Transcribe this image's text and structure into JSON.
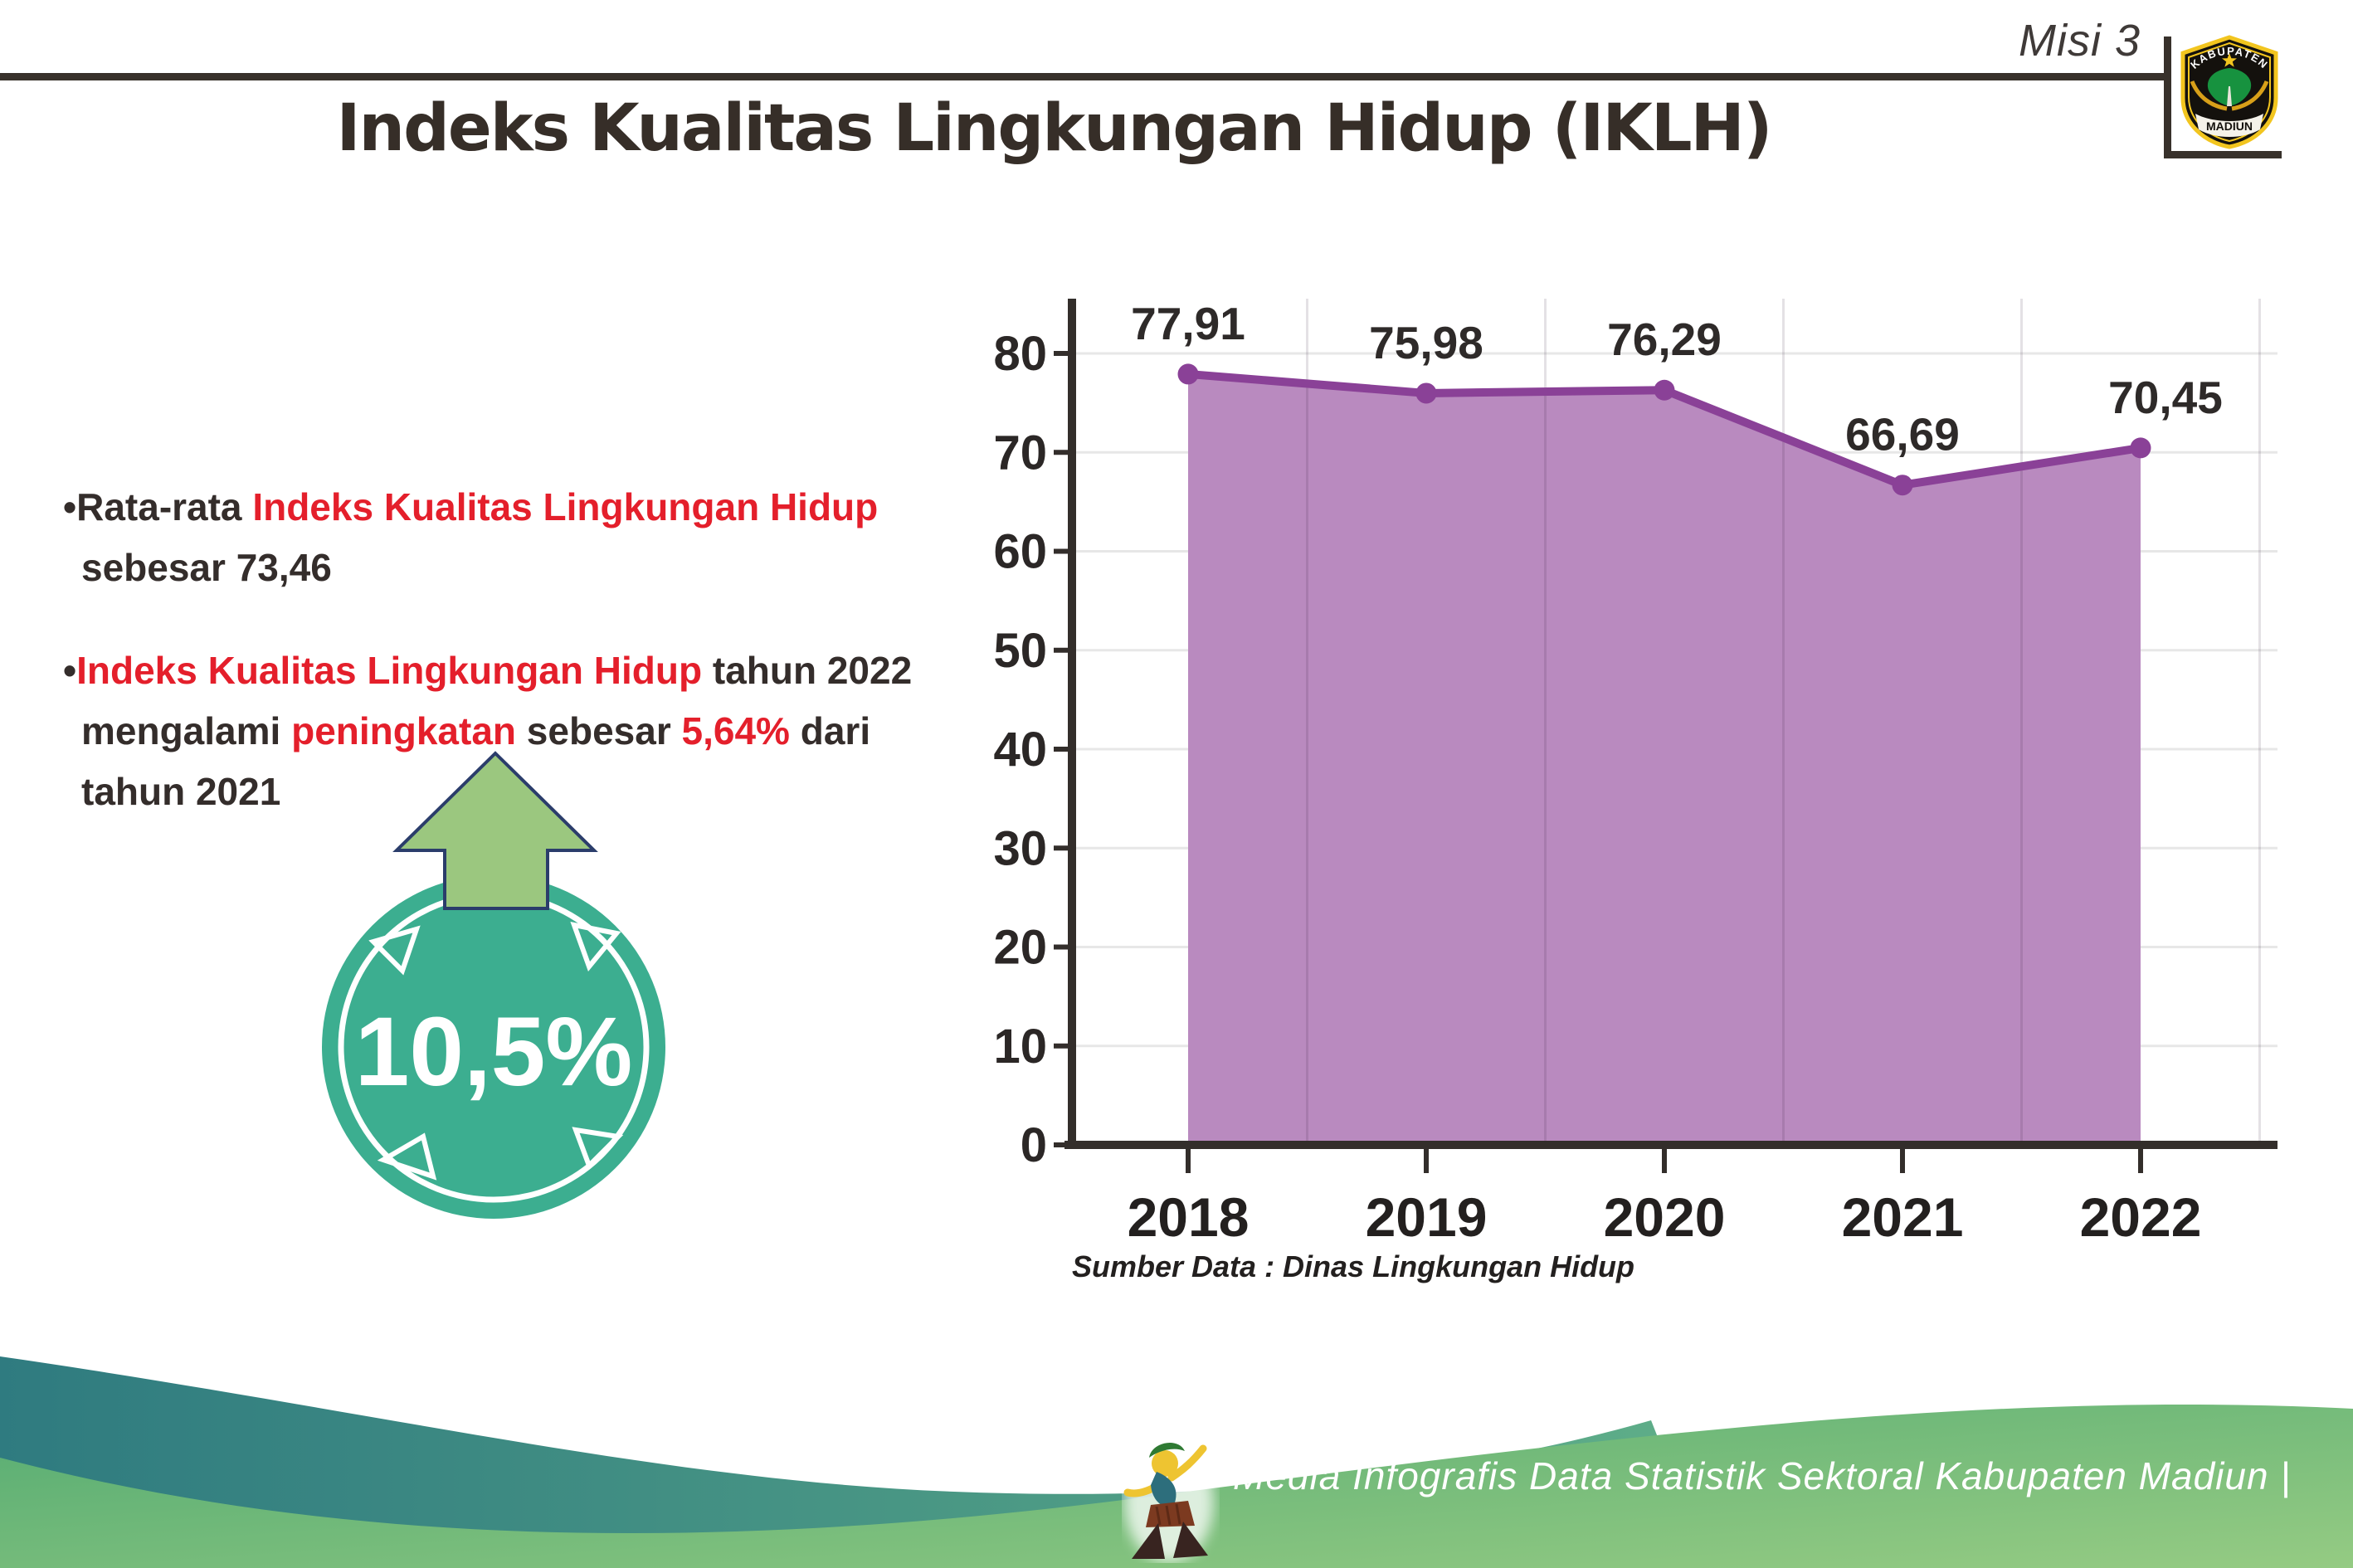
{
  "header": {
    "misi_label": "Misi 3",
    "title": "Indeks Kualitas Lingkungan Hidup (IKLH)",
    "logo_top": "KABUPATEN",
    "logo_bottom": "MADIUN"
  },
  "bullets": {
    "bullet_char": "•",
    "b1": {
      "dark1": "Rata-rata ",
      "red1": "Indeks Kualitas Lingkungan Hidup",
      "dark2": " sebesar 73,46"
    },
    "b2": {
      "red1": "Indeks Kualitas Lingkungan Hidup",
      "dark1": " tahun 2022 mengalami ",
      "red2": "peningkatan",
      "dark2": " sebesar ",
      "red3": "5,64%",
      "dark3": " dari tahun 2021"
    }
  },
  "badge": {
    "value": "10,5%",
    "circle_color": "#3cae90",
    "arrow_color": "#9bc77f",
    "arrow_outline": "#2b3d6b"
  },
  "chart_data": {
    "type": "area",
    "categories": [
      "2018",
      "2019",
      "2020",
      "2021",
      "2022"
    ],
    "values": [
      77.91,
      75.98,
      76.29,
      66.69,
      70.45
    ],
    "value_labels": [
      "77,91",
      "75,98",
      "76,29",
      "66,69",
      "70,45"
    ],
    "title": "",
    "xlabel": "",
    "ylabel": "",
    "ylim": [
      0,
      80
    ],
    "yticks": [
      0,
      10,
      20,
      30,
      40,
      50,
      60,
      70,
      80
    ],
    "grid": true,
    "legend": "none",
    "line_color": "#8a4197",
    "fill_color": "#b98abf",
    "axis_color": "#332e2b",
    "grid_color": "#e7e7e7",
    "label_color": "#2e2a29",
    "source_note": "Sumber Data : Dinas Lingkungan Hidup"
  },
  "footer": {
    "credit": "Media Infografis Data Statistik Sektoral Kabupaten Madiun |"
  }
}
